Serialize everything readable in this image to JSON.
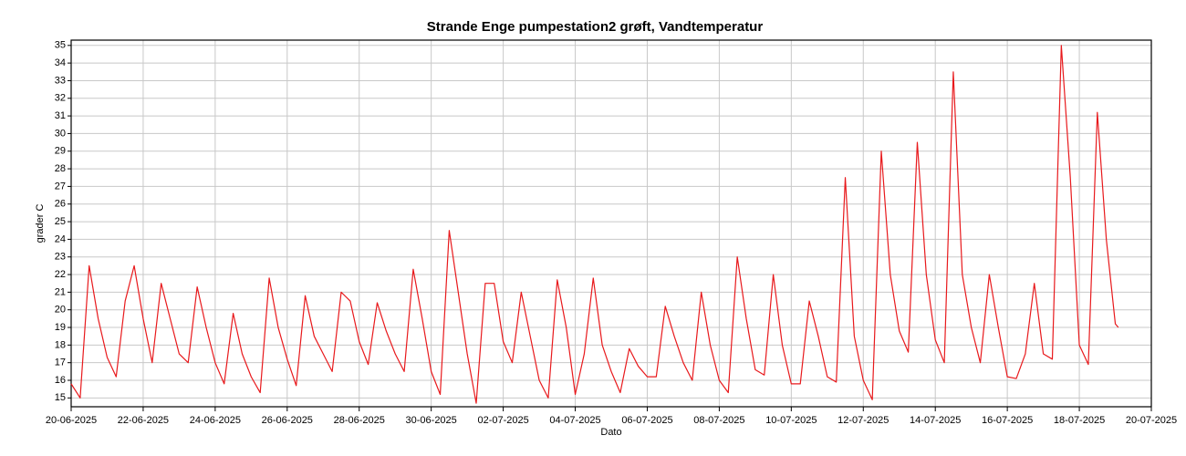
{
  "chart_data": {
    "type": "line",
    "title": "Strande Enge pumpestation2 grøft, Vandtemperatur",
    "x_label": "Dato",
    "y_label": "grader C",
    "color": "#e8191c",
    "grid": true,
    "xlim": [
      "20-06-2025",
      "20-07-2025"
    ],
    "xticks": [
      "20-06-2025",
      "22-06-2025",
      "24-06-2025",
      "26-06-2025",
      "28-06-2025",
      "30-06-2025",
      "02-07-2025",
      "04-07-2025",
      "06-07-2025",
      "08-07-2025",
      "10-07-2025",
      "12-07-2025",
      "14-07-2025",
      "16-07-2025",
      "18-07-2025",
      "20-07-2025"
    ],
    "ylim": [
      14.5,
      35.3
    ],
    "yticks": [
      15,
      16,
      17,
      18,
      19,
      20,
      21,
      22,
      23,
      24,
      25,
      26,
      27,
      28,
      29,
      30,
      31,
      32,
      33,
      34,
      35
    ],
    "x": [
      "20-06-2025 00:00",
      "20-06-2025 06:00",
      "20-06-2025 12:00",
      "20-06-2025 18:00",
      "21-06-2025 00:00",
      "21-06-2025 06:00",
      "21-06-2025 12:00",
      "21-06-2025 18:00",
      "22-06-2025 00:00",
      "22-06-2025 06:00",
      "22-06-2025 12:00",
      "22-06-2025 18:00",
      "23-06-2025 00:00",
      "23-06-2025 06:00",
      "23-06-2025 12:00",
      "23-06-2025 18:00",
      "24-06-2025 00:00",
      "24-06-2025 06:00",
      "24-06-2025 12:00",
      "24-06-2025 18:00",
      "25-06-2025 00:00",
      "25-06-2025 06:00",
      "25-06-2025 12:00",
      "25-06-2025 18:00",
      "26-06-2025 00:00",
      "26-06-2025 06:00",
      "26-06-2025 12:00",
      "26-06-2025 18:00",
      "27-06-2025 00:00",
      "27-06-2025 06:00",
      "27-06-2025 12:00",
      "27-06-2025 18:00",
      "28-06-2025 00:00",
      "28-06-2025 06:00",
      "28-06-2025 12:00",
      "28-06-2025 18:00",
      "29-06-2025 00:00",
      "29-06-2025 06:00",
      "29-06-2025 12:00",
      "29-06-2025 18:00",
      "30-06-2025 00:00",
      "30-06-2025 06:00",
      "30-06-2025 12:00",
      "30-06-2025 18:00",
      "01-07-2025 00:00",
      "01-07-2025 06:00",
      "01-07-2025 12:00",
      "01-07-2025 18:00",
      "02-07-2025 00:00",
      "02-07-2025 06:00",
      "02-07-2025 12:00",
      "02-07-2025 18:00",
      "03-07-2025 00:00",
      "03-07-2025 06:00",
      "03-07-2025 12:00",
      "03-07-2025 18:00",
      "04-07-2025 00:00",
      "04-07-2025 06:00",
      "04-07-2025 12:00",
      "04-07-2025 18:00",
      "05-07-2025 00:00",
      "05-07-2025 06:00",
      "05-07-2025 12:00",
      "05-07-2025 18:00",
      "06-07-2025 00:00",
      "06-07-2025 06:00",
      "06-07-2025 12:00",
      "06-07-2025 18:00",
      "07-07-2025 00:00",
      "07-07-2025 06:00",
      "07-07-2025 12:00",
      "07-07-2025 18:00",
      "08-07-2025 00:00",
      "08-07-2025 06:00",
      "08-07-2025 12:00",
      "08-07-2025 18:00",
      "09-07-2025 00:00",
      "09-07-2025 06:00",
      "09-07-2025 12:00",
      "09-07-2025 18:00",
      "10-07-2025 00:00",
      "10-07-2025 06:00",
      "10-07-2025 12:00",
      "10-07-2025 18:00",
      "11-07-2025 00:00",
      "11-07-2025 06:00",
      "11-07-2025 12:00",
      "11-07-2025 18:00",
      "12-07-2025 00:00",
      "12-07-2025 06:00",
      "12-07-2025 12:00",
      "12-07-2025 18:00",
      "13-07-2025 00:00",
      "13-07-2025 06:00",
      "13-07-2025 12:00",
      "13-07-2025 18:00",
      "14-07-2025 00:00",
      "14-07-2025 06:00",
      "14-07-2025 12:00",
      "14-07-2025 18:00",
      "15-07-2025 00:00",
      "15-07-2025 06:00",
      "15-07-2025 12:00",
      "15-07-2025 18:00",
      "16-07-2025 00:00",
      "16-07-2025 06:00",
      "16-07-2025 12:00",
      "16-07-2025 18:00",
      "17-07-2025 00:00",
      "17-07-2025 06:00",
      "17-07-2025 12:00",
      "17-07-2025 18:00",
      "18-07-2025 00:00",
      "18-07-2025 06:00",
      "18-07-2025 12:00",
      "18-07-2025 18:00",
      "19-07-2025 00:00",
      "19-07-2025 02:00"
    ],
    "values": [
      15.8,
      15.0,
      22.5,
      19.5,
      17.3,
      16.2,
      20.5,
      22.5,
      19.5,
      17.0,
      21.5,
      19.5,
      17.5,
      17.0,
      21.3,
      19.0,
      17.0,
      15.8,
      19.8,
      17.5,
      16.2,
      15.3,
      21.8,
      19.0,
      17.2,
      15.7,
      20.8,
      18.5,
      17.5,
      16.5,
      21.0,
      20.5,
      18.2,
      16.9,
      20.4,
      18.8,
      17.5,
      16.5,
      22.3,
      19.5,
      16.5,
      15.2,
      24.5,
      21.0,
      17.5,
      14.7,
      21.5,
      21.5,
      18.2,
      17.0,
      21.0,
      18.5,
      16.0,
      15.0,
      21.7,
      19.0,
      15.2,
      17.5,
      21.8,
      18.0,
      16.5,
      15.3,
      17.8,
      16.8,
      16.2,
      16.2,
      20.2,
      18.5,
      17.0,
      16.0,
      21.0,
      18.0,
      16.0,
      15.3,
      23.0,
      19.5,
      16.6,
      16.3,
      22.0,
      18.0,
      15.8,
      15.8,
      20.5,
      18.5,
      16.2,
      15.9,
      27.5,
      18.5,
      16.0,
      14.9,
      29.0,
      22.0,
      18.8,
      17.6,
      29.5,
      22.0,
      18.3,
      17.0,
      33.5,
      22.0,
      19.0,
      17.0,
      22.0,
      19.0,
      16.2,
      16.1,
      17.5,
      21.5,
      17.5,
      17.2,
      35.0,
      27.5,
      18.0,
      16.9,
      31.2,
      24.0,
      19.2,
      19.0
    ]
  }
}
